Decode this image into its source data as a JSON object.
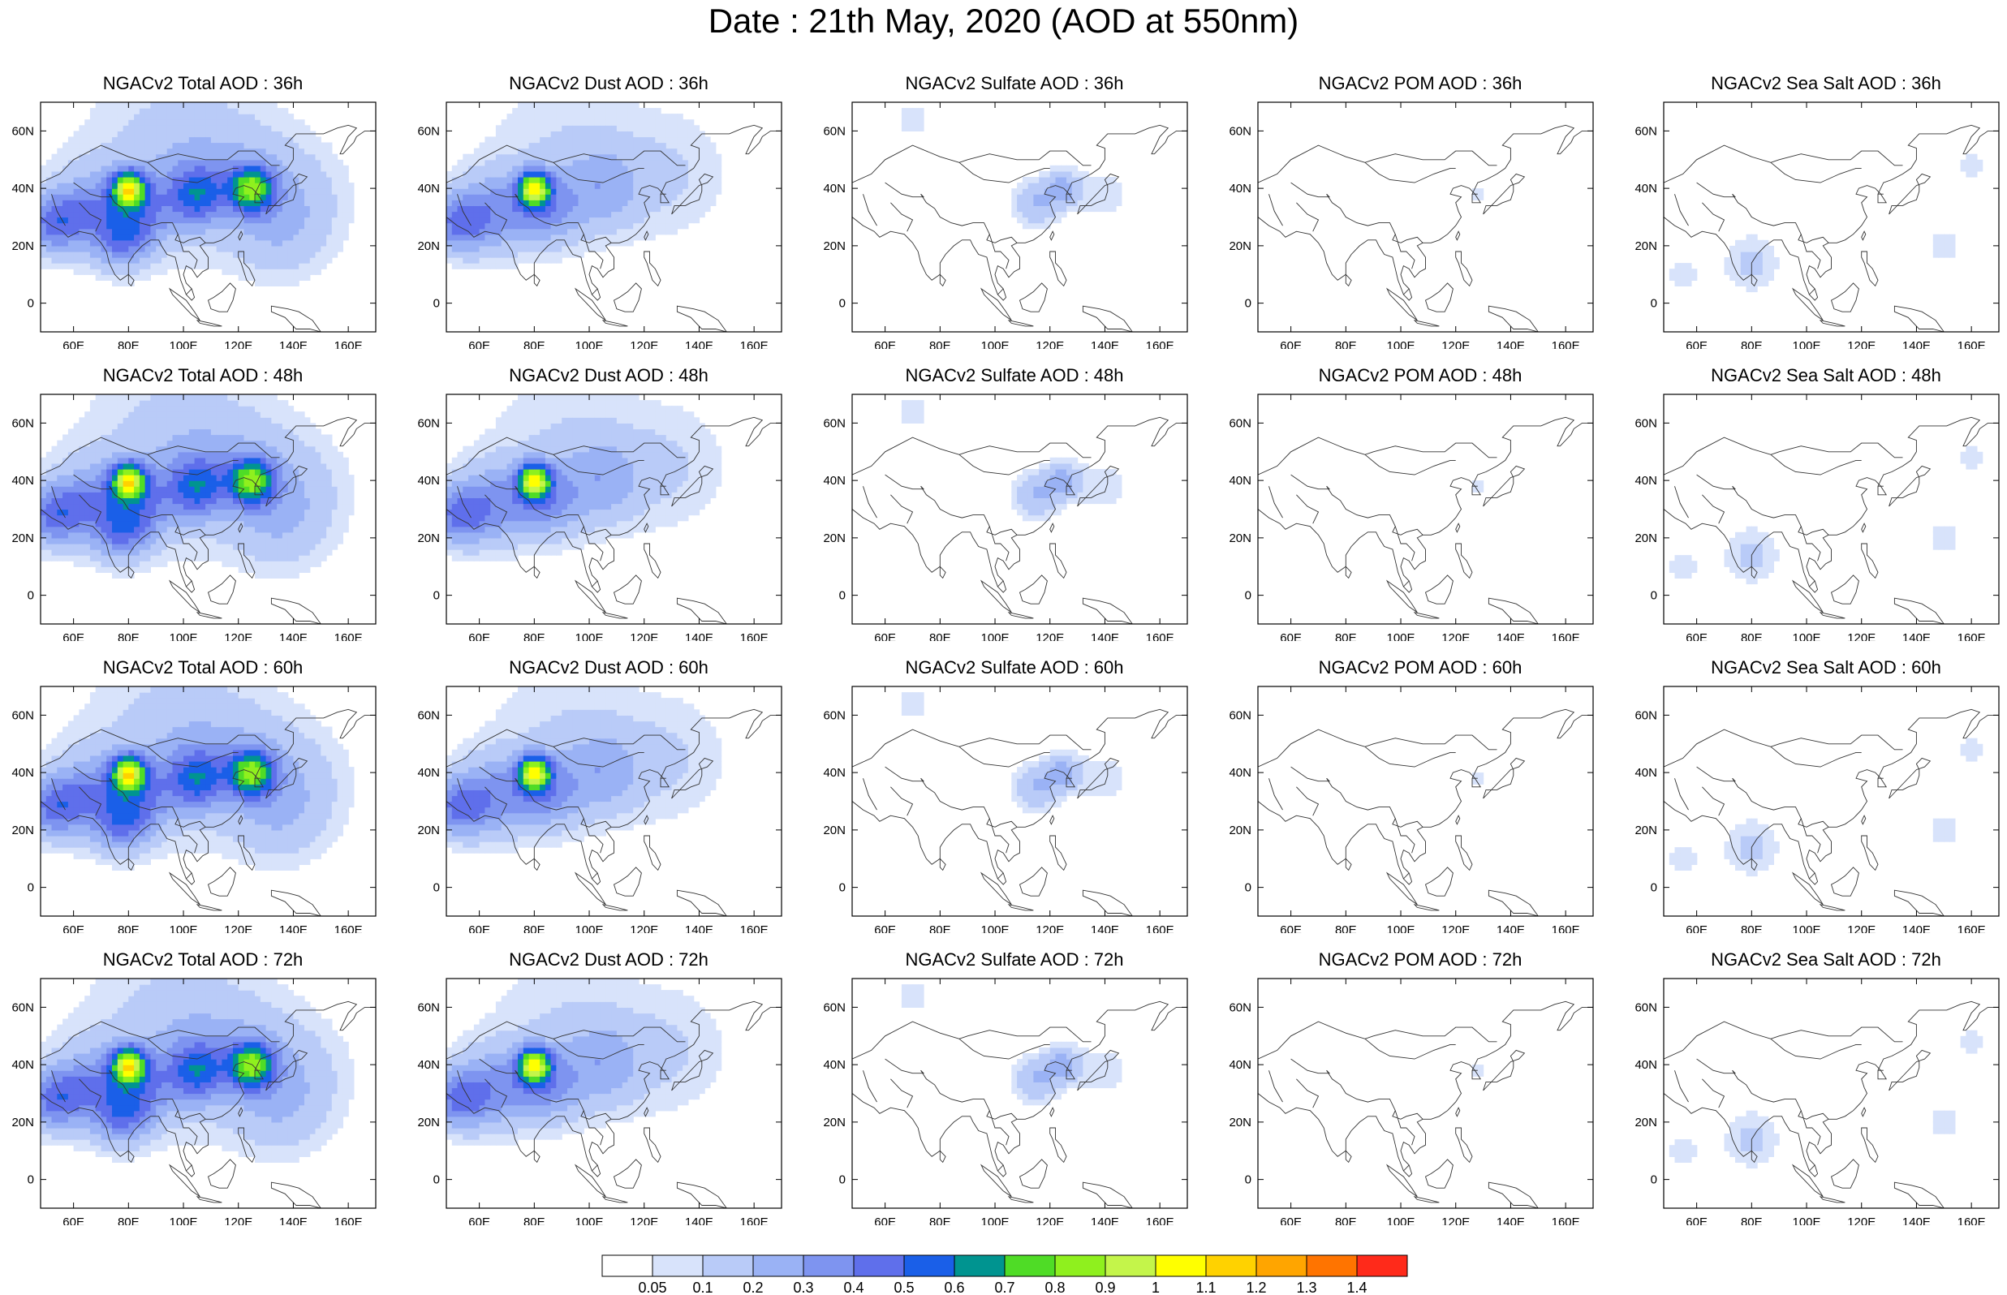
{
  "title": "Date : 21th May, 2020 (AOD at 550nm)",
  "panels": [
    {
      "title": "NGACv2 Total AOD : 36h",
      "species": "total",
      "hour": 36
    },
    {
      "title": "NGACv2 Dust AOD : 36h",
      "species": "dust",
      "hour": 36
    },
    {
      "title": "NGACv2 Sulfate AOD : 36h",
      "species": "sulfate",
      "hour": 36
    },
    {
      "title": "NGACv2 POM AOD : 36h",
      "species": "pom",
      "hour": 36
    },
    {
      "title": "NGACv2 Sea Salt AOD : 36h",
      "species": "seasalt",
      "hour": 36
    },
    {
      "title": "NGACv2 Total AOD : 48h",
      "species": "total",
      "hour": 48
    },
    {
      "title": "NGACv2 Dust AOD : 48h",
      "species": "dust",
      "hour": 48
    },
    {
      "title": "NGACv2 Sulfate AOD : 48h",
      "species": "sulfate",
      "hour": 48
    },
    {
      "title": "NGACv2 POM AOD : 48h",
      "species": "pom",
      "hour": 48
    },
    {
      "title": "NGACv2 Sea Salt AOD : 48h",
      "species": "seasalt",
      "hour": 48
    },
    {
      "title": "NGACv2 Total AOD : 60h",
      "species": "total",
      "hour": 60
    },
    {
      "title": "NGACv2 Dust AOD : 60h",
      "species": "dust",
      "hour": 60
    },
    {
      "title": "NGACv2 Sulfate AOD : 60h",
      "species": "sulfate",
      "hour": 60
    },
    {
      "title": "NGACv2 POM AOD : 60h",
      "species": "pom",
      "hour": 60
    },
    {
      "title": "NGACv2 Sea Salt AOD : 60h",
      "species": "seasalt",
      "hour": 60
    },
    {
      "title": "NGACv2 Total AOD : 72h",
      "species": "total",
      "hour": 72
    },
    {
      "title": "NGACv2 Dust AOD : 72h",
      "species": "dust",
      "hour": 72
    },
    {
      "title": "NGACv2 Sulfate AOD : 72h",
      "species": "sulfate",
      "hour": 72
    },
    {
      "title": "NGACv2 POM AOD : 72h",
      "species": "pom",
      "hour": 72
    },
    {
      "title": "NGACv2 Sea Salt  AOD : 72h",
      "species": "seasalt",
      "hour": 72
    }
  ],
  "map": {
    "lon_range": [
      48,
      170
    ],
    "lat_range": [
      -10,
      70
    ],
    "lon_ticks": [
      "60E",
      "80E",
      "100E",
      "120E",
      "140E",
      "160E"
    ],
    "lon_tick_values": [
      60,
      80,
      100,
      120,
      140,
      160
    ],
    "lat_ticks": [
      "60N",
      "40N",
      "20N",
      "0"
    ],
    "lat_tick_values": [
      60,
      40,
      20,
      0
    ]
  },
  "colorbar": {
    "labels": [
      "0.05",
      "0.1",
      "0.2",
      "0.3",
      "0.4",
      "0.5",
      "0.6",
      "0.7",
      "0.8",
      "0.9",
      "1",
      "1.1",
      "1.2",
      "1.3",
      "1.4"
    ],
    "colors": [
      "#ffffff",
      "#d8e3fb",
      "#b9cbf8",
      "#9ab2f5",
      "#7e94f0",
      "#5f6feb",
      "#1a5fe8",
      "#009490",
      "#4fdc26",
      "#8ff01e",
      "#c4f54a",
      "#ffff00",
      "#ffd200",
      "#ffa500",
      "#ff7400",
      "#ff2a1a"
    ]
  },
  "plumes": {
    "total": [
      {
        "lon": 52,
        "lat": 28,
        "r": 10,
        "v": 0.35
      },
      {
        "lon": 65,
        "lat": 32,
        "r": 14,
        "v": 0.3
      },
      {
        "lon": 80,
        "lat": 40,
        "r": 6,
        "v": 0.8
      },
      {
        "lon": 85,
        "lat": 32,
        "r": 12,
        "v": 0.25
      },
      {
        "lon": 78,
        "lat": 22,
        "r": 10,
        "v": 0.3
      },
      {
        "lon": 105,
        "lat": 38,
        "r": 10,
        "v": 0.4
      },
      {
        "lon": 125,
        "lat": 40,
        "r": 8,
        "v": 0.65
      },
      {
        "lon": 115,
        "lat": 45,
        "r": 25,
        "v": 0.15
      },
      {
        "lon": 90,
        "lat": 50,
        "r": 30,
        "v": 0.12
      },
      {
        "lon": 140,
        "lat": 35,
        "r": 20,
        "v": 0.15
      },
      {
        "lon": 135,
        "lat": 22,
        "r": 15,
        "v": 0.08
      }
    ],
    "dust": [
      {
        "lon": 52,
        "lat": 28,
        "r": 10,
        "v": 0.35
      },
      {
        "lon": 65,
        "lat": 32,
        "r": 14,
        "v": 0.3
      },
      {
        "lon": 80,
        "lat": 40,
        "r": 6,
        "v": 0.8
      },
      {
        "lon": 85,
        "lat": 32,
        "r": 12,
        "v": 0.25
      },
      {
        "lon": 105,
        "lat": 40,
        "r": 14,
        "v": 0.2
      },
      {
        "lon": 90,
        "lat": 52,
        "r": 28,
        "v": 0.1
      },
      {
        "lon": 130,
        "lat": 45,
        "r": 22,
        "v": 0.1
      }
    ],
    "sulfate": [
      {
        "lon": 115,
        "lat": 35,
        "r": 8,
        "v": 0.2
      },
      {
        "lon": 125,
        "lat": 40,
        "r": 6,
        "v": 0.25
      },
      {
        "lon": 140,
        "lat": 38,
        "r": 10,
        "v": 0.08
      },
      {
        "lon": 70,
        "lat": 64,
        "r": 8,
        "v": 0.07
      }
    ],
    "pom": [
      {
        "lon": 128,
        "lat": 38,
        "r": 3,
        "v": 0.1
      }
    ],
    "seasalt": [
      {
        "lon": 80,
        "lat": 14,
        "r": 10,
        "v": 0.12
      },
      {
        "lon": 55,
        "lat": 10,
        "r": 8,
        "v": 0.07
      },
      {
        "lon": 150,
        "lat": 20,
        "r": 8,
        "v": 0.07
      },
      {
        "lon": 160,
        "lat": 48,
        "r": 6,
        "v": 0.08
      }
    ]
  }
}
